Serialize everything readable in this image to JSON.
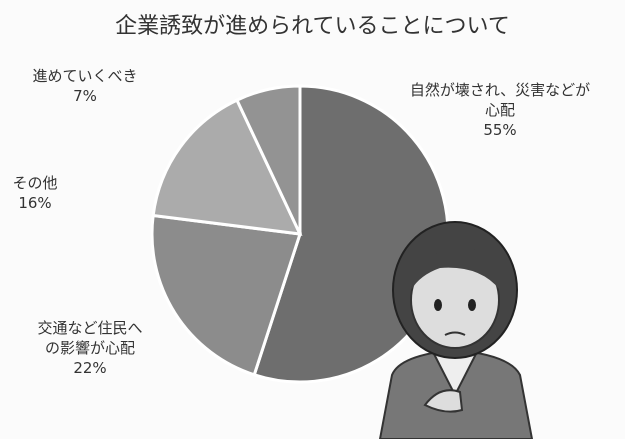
{
  "chart_data": {
    "type": "pie",
    "title": "企業誘致が進められていることについて",
    "categories": [
      "自然が壊され、災害などが\n心配",
      "交通など住民へ\nの影響が心配",
      "その他",
      "進めていくべき"
    ],
    "values": [
      55,
      22,
      16,
      7
    ],
    "value_labels": [
      "55%",
      "22%",
      "16%",
      "7%"
    ],
    "colors": [
      "#6e6e6e",
      "#8c8c8c",
      "#ababab",
      "#939393"
    ]
  }
}
